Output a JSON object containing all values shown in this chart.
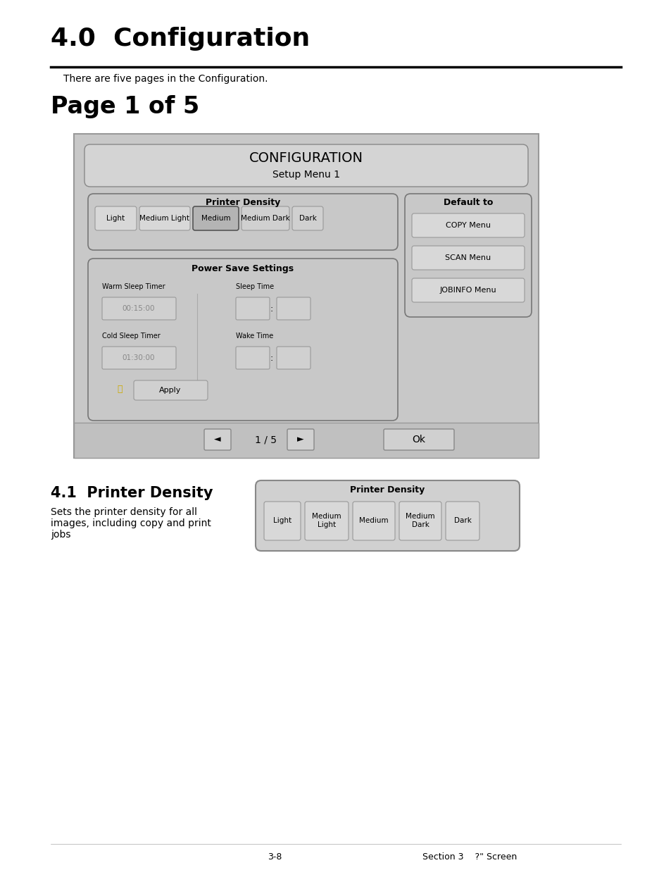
{
  "bg_color": "#ffffff",
  "title": "4.0  Configuration",
  "title_size": 26,
  "subtitle": "There are five pages in the Configuration.",
  "subtitle_size": 10,
  "page_heading": "Page 1 of 5",
  "page_heading_size": 24,
  "section_title": "4.1  Printer Density",
  "section_title_size": 15,
  "section_desc": "Sets the printer density for all\nimages, including copy and print\njobs",
  "section_desc_size": 10,
  "screen_bg": "#c8c8c8",
  "btn_light_bg": "#d8d8d8",
  "btn_selected_bg": "#b0b0b0",
  "btn_default_bg": "#d8d8d8",
  "footer_left": "3-8",
  "footer_right": "Section 3    ?\" Screen",
  "footer_size": 9
}
